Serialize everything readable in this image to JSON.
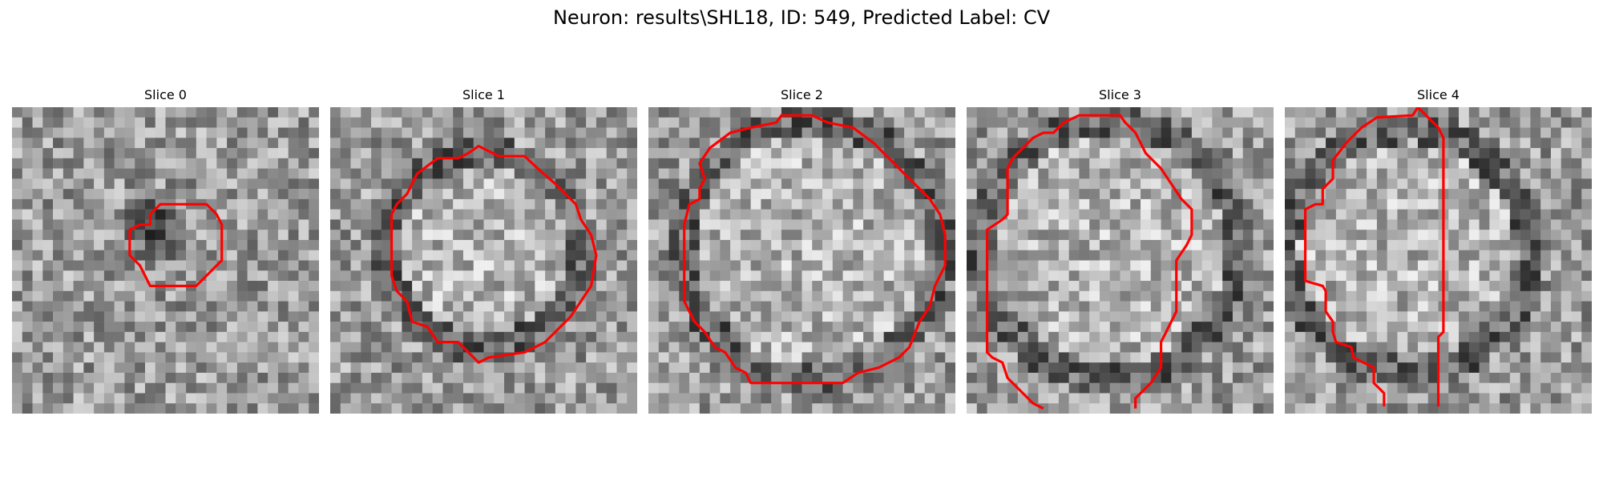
{
  "figure": {
    "title": "Neuron: results\\SHL18, ID: 549, Predicted Label: CV"
  },
  "panels": [
    {
      "title": "Slice 0"
    },
    {
      "title": "Slice 1"
    },
    {
      "title": "Slice 2"
    },
    {
      "title": "Slice 3"
    },
    {
      "title": "Slice 4"
    }
  ],
  "style": {
    "contour_color": "#ff0000",
    "colormap": "grayscale"
  }
}
